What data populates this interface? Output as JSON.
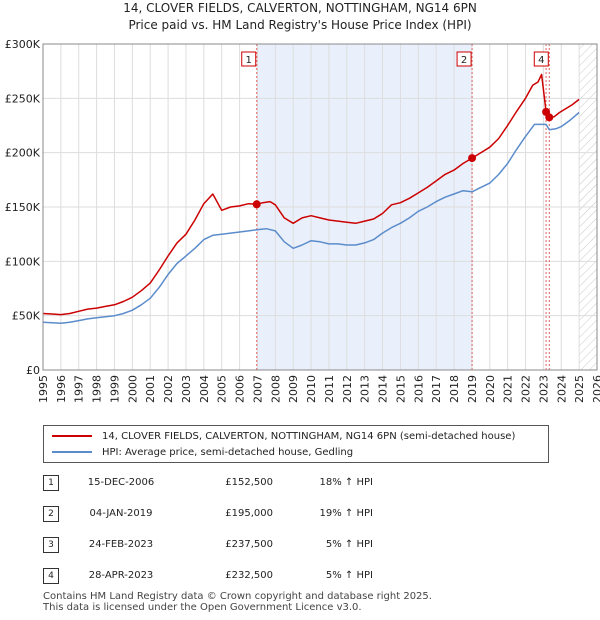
{
  "chart_data": {
    "type": "line",
    "title": "14, CLOVER FIELDS, CALVERTON, NOTTINGHAM, NG14 6PN",
    "subtitle": "Price paid vs. HM Land Registry's House Price Index (HPI)",
    "xlim": [
      1995,
      2026
    ],
    "ylim": [
      0,
      300000
    ],
    "x_ticks": [
      "1995",
      "1996",
      "1997",
      "1998",
      "1999",
      "2000",
      "2001",
      "2002",
      "2003",
      "2004",
      "2005",
      "2006",
      "2007",
      "2008",
      "2009",
      "2010",
      "2011",
      "2012",
      "2013",
      "2014",
      "2015",
      "2016",
      "2017",
      "2018",
      "2019",
      "2020",
      "2021",
      "2022",
      "2023",
      "2024",
      "2025",
      "2026"
    ],
    "y_ticks": [
      {
        "value": 0,
        "label": "£0"
      },
      {
        "value": 50000,
        "label": "£50K"
      },
      {
        "value": 100000,
        "label": "£100K"
      },
      {
        "value": 150000,
        "label": "£150K"
      },
      {
        "value": 200000,
        "label": "£200K"
      },
      {
        "value": 250000,
        "label": "£250K"
      },
      {
        "value": 300000,
        "label": "£300K"
      }
    ],
    "grid": true,
    "highlight_span": [
      2006.96,
      2019.01
    ],
    "future_hatch_from": 2025.0,
    "series": [
      {
        "name": "14, CLOVER FIELDS, CALVERTON, NOTTINGHAM, NG14 6PN (semi-detached house)",
        "color": "#cc0000",
        "x": [
          1995,
          1995.5,
          1996,
          1996.5,
          1997,
          1997.5,
          1998,
          1998.5,
          1999,
          1999.5,
          2000,
          2000.5,
          2001,
          2001.5,
          2002,
          2002.5,
          2003,
          2003.5,
          2004,
          2004.5,
          2005,
          2005.5,
          2006,
          2006.5,
          2006.96,
          2007.3,
          2007.7,
          2008,
          2008.5,
          2009,
          2009.5,
          2010,
          2010.5,
          2011,
          2011.5,
          2012,
          2012.5,
          2013,
          2013.5,
          2014,
          2014.5,
          2015,
          2015.5,
          2016,
          2016.5,
          2017,
          2017.5,
          2018,
          2018.5,
          2019.01,
          2019.5,
          2020,
          2020.5,
          2021,
          2021.5,
          2022,
          2022.4,
          2022.7,
          2022.9,
          2023.15,
          2023.33,
          2023.6,
          2023.9,
          2024.2,
          2024.6,
          2025.0
        ],
        "values": [
          52000,
          51500,
          51000,
          52000,
          54000,
          56000,
          57000,
          58500,
          60000,
          63000,
          67000,
          73000,
          80000,
          92000,
          105000,
          117000,
          125000,
          138000,
          153000,
          162000,
          147000,
          150000,
          151000,
          153000,
          152500,
          154000,
          155000,
          152000,
          140000,
          135000,
          140000,
          142000,
          140000,
          138000,
          137000,
          136000,
          135000,
          137000,
          139000,
          144000,
          152000,
          154000,
          158000,
          163000,
          168000,
          174000,
          180000,
          184000,
          190000,
          195000,
          200000,
          205000,
          213000,
          225000,
          238000,
          250000,
          262000,
          265000,
          272000,
          237500,
          232500,
          233000,
          237000,
          240000,
          244000,
          249000
        ]
      },
      {
        "name": "HPI: Average price, semi-detached house, Gedling",
        "color": "#5b8ccc",
        "x": [
          1995,
          1995.5,
          1996,
          1996.5,
          1997,
          1997.5,
          1998,
          1998.5,
          1999,
          1999.5,
          2000,
          2000.5,
          2001,
          2001.5,
          2002,
          2002.5,
          2003,
          2003.5,
          2004,
          2004.5,
          2005,
          2005.5,
          2006,
          2006.5,
          2006.96,
          2007.5,
          2008,
          2008.5,
          2009,
          2009.5,
          2010,
          2010.5,
          2011,
          2011.5,
          2012,
          2012.5,
          2013,
          2013.5,
          2014,
          2014.5,
          2015,
          2015.5,
          2016,
          2016.5,
          2017,
          2017.5,
          2018,
          2018.5,
          2019.01,
          2019.5,
          2020,
          2020.5,
          2021,
          2021.5,
          2022,
          2022.5,
          2022.9,
          2023.15,
          2023.33,
          2023.7,
          2024,
          2024.5,
          2025.0
        ],
        "values": [
          44000,
          43500,
          43000,
          44000,
          45500,
          47000,
          48000,
          49000,
          50000,
          52000,
          55000,
          60000,
          66000,
          76000,
          88000,
          98000,
          105000,
          112000,
          120000,
          124000,
          125000,
          126000,
          127000,
          128000,
          129000,
          130000,
          128000,
          118000,
          112000,
          115000,
          119000,
          118000,
          116000,
          116000,
          115000,
          115000,
          117000,
          120000,
          126000,
          131000,
          135000,
          140000,
          146000,
          150000,
          155000,
          159000,
          162000,
          165000,
          164000,
          168000,
          172000,
          180000,
          190000,
          203000,
          215000,
          226000,
          226000,
          226000,
          221000,
          222000,
          224000,
          230000,
          237000
        ]
      }
    ],
    "sales": [
      {
        "id": "1",
        "x": 2006.96,
        "value": 152500
      },
      {
        "id": "2",
        "x": 2019.01,
        "value": 195000
      },
      {
        "id": "3",
        "x": 2023.15,
        "value": 237500
      },
      {
        "id": "4",
        "x": 2023.33,
        "value": 232500
      }
    ],
    "marker_boxes": [
      {
        "id": "1",
        "x": 2006.96
      },
      {
        "id": "2",
        "x": 2019.01
      },
      {
        "id": "4",
        "x": 2023.33
      }
    ]
  },
  "title_line1": "14, CLOVER FIELDS, CALVERTON, NOTTINGHAM, NG14 6PN",
  "title_line2": "Price paid vs. HM Land Registry's House Price Index (HPI)",
  "legend": {
    "property_label": "14, CLOVER FIELDS, CALVERTON, NOTTINGHAM, NG14 6PN (semi-detached house)",
    "hpi_label": "HPI: Average price, semi-detached house, Gedling",
    "property_color": "#cc0000",
    "hpi_color": "#5b8ccc"
  },
  "transactions": [
    {
      "num": "1",
      "date": "15-DEC-2006",
      "price": "£152,500",
      "hpi": "18% ↑ HPI"
    },
    {
      "num": "2",
      "date": "04-JAN-2019",
      "price": "£195,000",
      "hpi": "19% ↑ HPI"
    },
    {
      "num": "3",
      "date": "24-FEB-2023",
      "price": "£237,500",
      "hpi": "5% ↑ HPI"
    },
    {
      "num": "4",
      "date": "28-APR-2023",
      "price": "£232,500",
      "hpi": "5% ↑ HPI"
    }
  ],
  "footer": {
    "line1": "Contains HM Land Registry data © Crown copyright and database right 2025.",
    "line2": "This data is licensed under the Open Government Licence v3.0."
  }
}
